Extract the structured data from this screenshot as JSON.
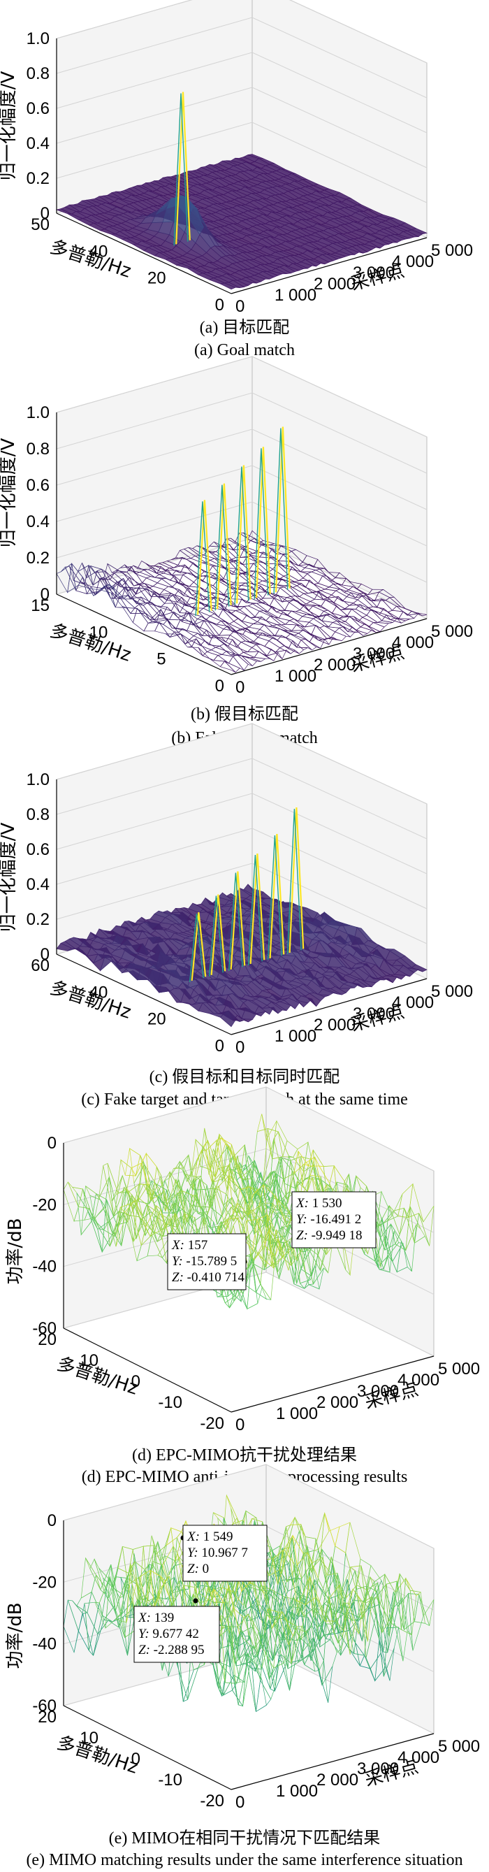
{
  "chart_data": [
    {
      "type": "surface",
      "zlabel": "归一化幅度/V",
      "xlabel": "采样点",
      "ylabel": "多普勒/Hz",
      "z_ticks": [
        "0",
        "0.2",
        "0.4",
        "0.6",
        "0.8",
        "1.0"
      ],
      "x_ticks": [
        "0",
        "1 000",
        "2 000",
        "3 000",
        "4 000",
        "5 000"
      ],
      "y_ticks": [
        "50",
        "40",
        "20",
        "0"
      ],
      "zlim": [
        0,
        1
      ],
      "xlim": [
        0,
        5000
      ],
      "ylim": [
        0,
        50
      ],
      "peaks": [
        {
          "x": 1000,
          "y": 25,
          "z": 0.86
        }
      ],
      "caption_cn": "(a) 目标匹配",
      "caption_en": "(a) Goal match"
    },
    {
      "type": "surface",
      "zlabel": "归一化幅度/V",
      "xlabel": "采样点",
      "ylabel": "多普勒/Hz",
      "z_ticks": [
        "0",
        "0.2",
        "0.4",
        "0.6",
        "0.8",
        "1.0"
      ],
      "x_ticks": [
        "0",
        "1 000",
        "2 000",
        "3 000",
        "4 000",
        "5 000"
      ],
      "y_ticks": [
        "15",
        "10",
        "5",
        "0"
      ],
      "zlim": [
        0,
        1
      ],
      "xlim": [
        0,
        5000
      ],
      "ylim": [
        0,
        15
      ],
      "peaks": [
        {
          "x": 1700,
          "y": 8,
          "z": 0.62
        },
        {
          "x": 2200,
          "y": 8,
          "z": 0.68
        },
        {
          "x": 2700,
          "y": 8,
          "z": 0.75
        },
        {
          "x": 3200,
          "y": 8,
          "z": 0.82
        },
        {
          "x": 3700,
          "y": 8,
          "z": 0.9
        }
      ],
      "caption_cn": "(b) 假目标匹配",
      "caption_en": "(b) False target match"
    },
    {
      "type": "surface",
      "zlabel": "归一化幅度/V",
      "xlabel": "采样点",
      "ylabel": "多普勒/Hz",
      "z_ticks": [
        "0",
        "0.2",
        "0.4",
        "0.6",
        "0.8",
        "1.0"
      ],
      "x_ticks": [
        "0",
        "1 000",
        "2 000",
        "3 000",
        "4 000",
        "5 000"
      ],
      "y_ticks": [
        "60",
        "40",
        "20",
        "0"
      ],
      "zlim": [
        0,
        1
      ],
      "xlim": [
        0,
        5000
      ],
      "ylim": [
        0,
        60
      ],
      "peaks": [
        {
          "x": 1400,
          "y": 30,
          "z": 0.38
        },
        {
          "x": 1900,
          "y": 30,
          "z": 0.45
        },
        {
          "x": 2400,
          "y": 30,
          "z": 0.55
        },
        {
          "x": 2900,
          "y": 30,
          "z": 0.62
        },
        {
          "x": 3400,
          "y": 30,
          "z": 0.7
        },
        {
          "x": 3900,
          "y": 30,
          "z": 0.82
        }
      ],
      "caption_cn": "(c) 假目标和目标同时匹配",
      "caption_en": "(c) Fake target and target match at the same time"
    },
    {
      "type": "surface",
      "zlabel": "功率/dB",
      "xlabel": "采样点",
      "ylabel": "多普勒/Hz",
      "z_ticks": [
        "-60",
        "-40",
        "-20",
        "0"
      ],
      "x_ticks": [
        "0",
        "1 000",
        "2 000",
        "3 000",
        "4 000",
        "5 000"
      ],
      "y_ticks": [
        "20",
        "10",
        "0",
        "-10",
        "-20"
      ],
      "zlim": [
        -60,
        0
      ],
      "xlim": [
        0,
        5000
      ],
      "ylim": [
        -20,
        20
      ],
      "datatips": [
        {
          "x_text": "157",
          "y_text": "-15.789 5",
          "z_text": "-0.410 714"
        },
        {
          "x_text": "1 530",
          "y_text": "-16.491 2",
          "z_text": "-9.949 18"
        }
      ],
      "caption_cn": "(d) EPC-MIMO抗干扰处理结果",
      "caption_en": "(d) EPC-MIMO anti-jamming processing results"
    },
    {
      "type": "surface",
      "zlabel": "功率/dB",
      "xlabel": "采样点",
      "ylabel": "多普勒/Hz",
      "z_ticks": [
        "-60",
        "-40",
        "-20",
        "0"
      ],
      "x_ticks": [
        "0",
        "1 000",
        "2 000",
        "3 000",
        "4 000",
        "5 000"
      ],
      "y_ticks": [
        "20",
        "10",
        "0",
        "-10",
        "-20"
      ],
      "zlim": [
        -60,
        0
      ],
      "xlim": [
        0,
        5000
      ],
      "ylim": [
        -20,
        20
      ],
      "datatips": [
        {
          "x_text": "1 549",
          "y_text": "10.967 7",
          "z_text": "0"
        },
        {
          "x_text": "139",
          "y_text": "9.677 42",
          "z_text": "-2.288 95"
        }
      ],
      "caption_cn": "(e) MIMO在相同干扰情况下匹配结果",
      "caption_en": "(e) MIMO matching results under the same interference situation"
    }
  ],
  "colors": {
    "viridis_dark": "#3b1a78",
    "viridis_blue": "#31688e",
    "viridis_teal": "#21a38c",
    "viridis_green": "#7ad151",
    "viridis_yellow": "#fde725"
  }
}
